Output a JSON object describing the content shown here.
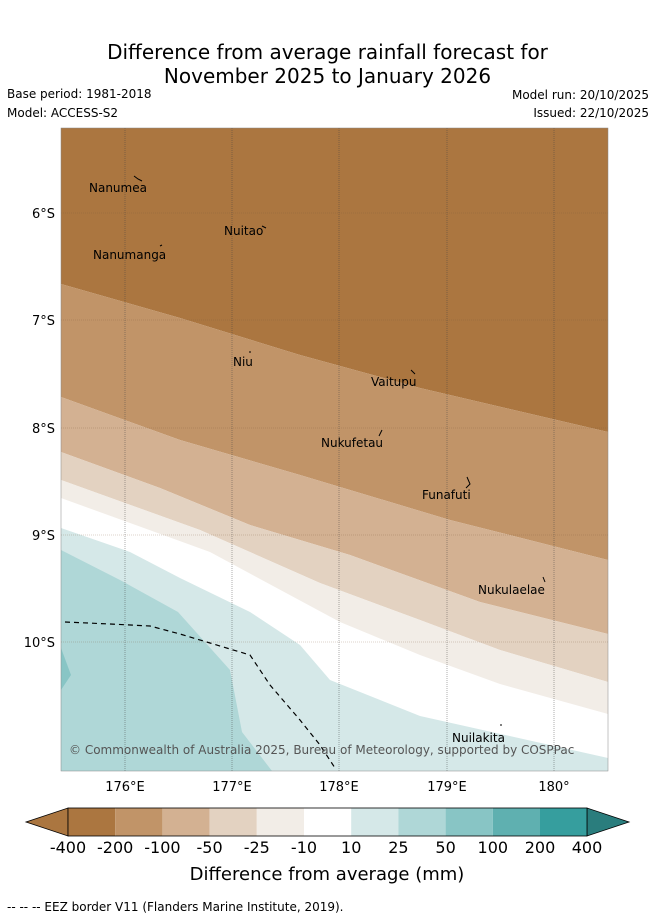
{
  "header": {
    "title_line1": "Difference from average rainfall forecast for",
    "title_line2": "November 2025 to January 2026",
    "base_period": "Base period: 1981-2018",
    "model": "Model: ACCESS-S2",
    "model_run": "Model run: 20/10/2025",
    "issued": "Issued: 22/10/2025"
  },
  "map": {
    "lat_labels": [
      "6°S",
      "7°S",
      "8°S",
      "9°S",
      "10°S"
    ],
    "lon_labels": [
      "176°E",
      "177°E",
      "178°E",
      "179°E",
      "180°"
    ],
    "islands": [
      {
        "name": "Nanumea"
      },
      {
        "name": "Nuitao"
      },
      {
        "name": "Nanumanga"
      },
      {
        "name": "Niu"
      },
      {
        "name": "Vaitupu"
      },
      {
        "name": "Nukufetau"
      },
      {
        "name": "Funafuti"
      },
      {
        "name": "Nukulaelae"
      },
      {
        "name": "Nuilakita"
      }
    ],
    "copyright": "© Commonwealth of Australia 2025, Bureau of Meteorology, supported by COSPPac",
    "band_colors": {
      "c_m400": "#ab7640",
      "c_m200": "#c19468",
      "c_m100": "#d3b192",
      "c_m50": "#e3d2c1",
      "c_m25": "#f2ede7",
      "c_0": "#ffffff",
      "c_p10": "#d5e8e8",
      "c_p25": "#afd7d7",
      "c_p50": "#88c5c5",
      "c_p100": "#5fb0b0",
      "c_p200": "#369e9e",
      "c_p400": "#2a7d7d"
    }
  },
  "colorbar": {
    "ticks": [
      "-400",
      "-200",
      "-100",
      "-50",
      "-25",
      "-10",
      "10",
      "25",
      "50",
      "100",
      "200",
      "400"
    ],
    "title": "Difference from average (mm)"
  },
  "footnote": "--  --  -- EEZ border V11 (Flanders Marine Institute, 2019)."
}
